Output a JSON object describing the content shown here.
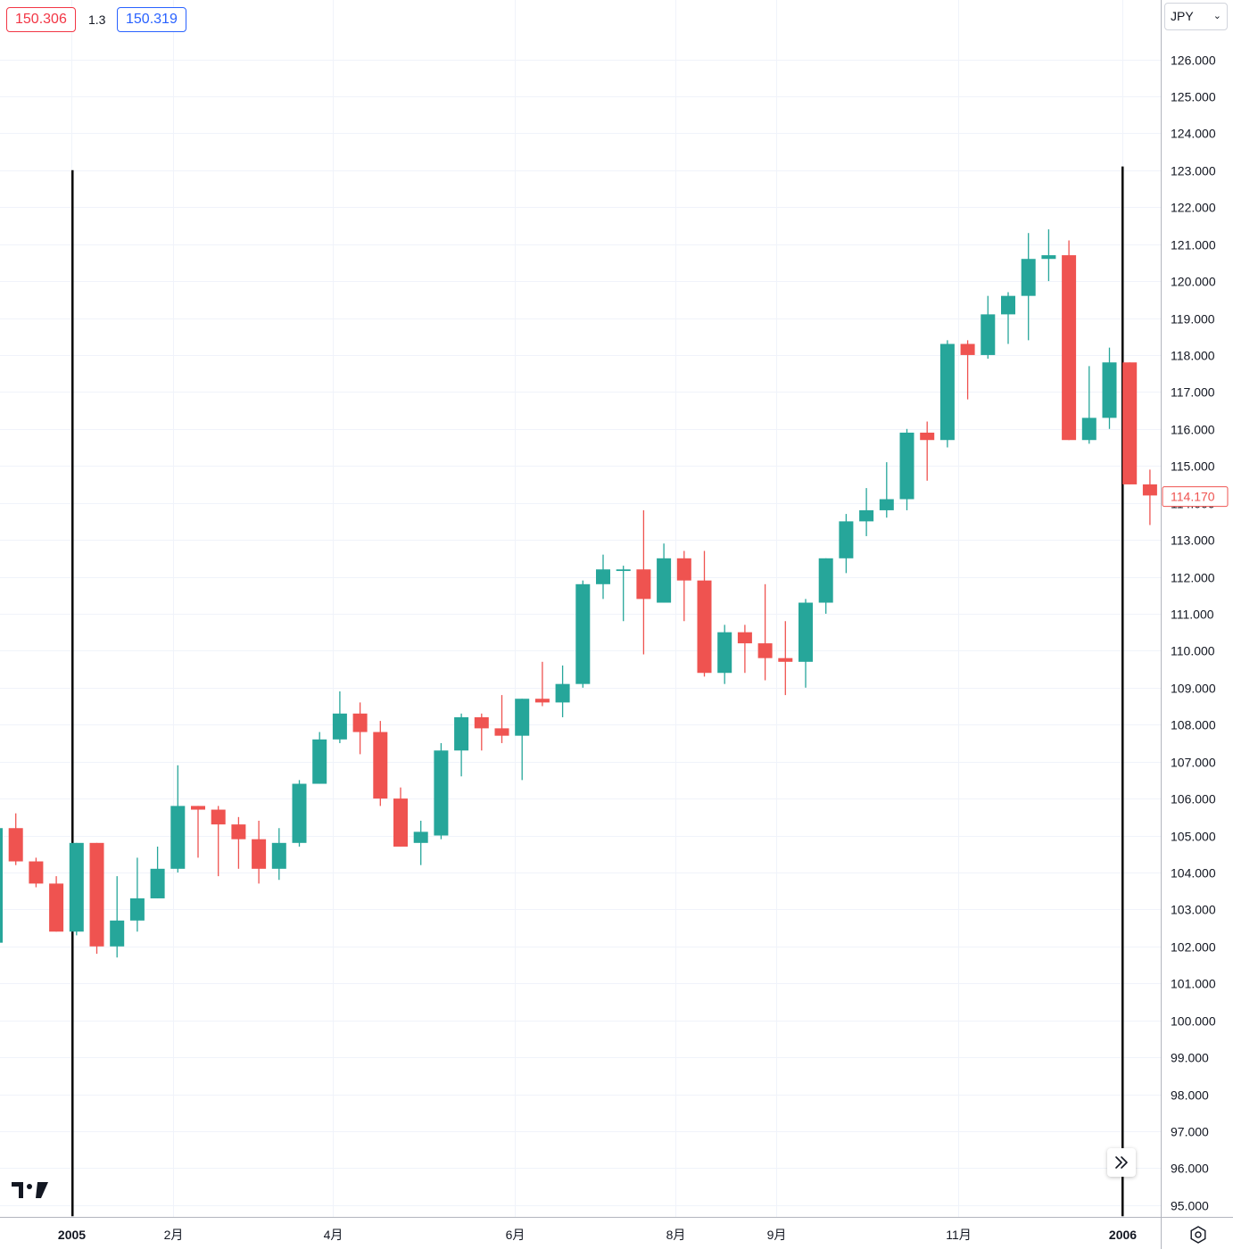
{
  "header": {
    "bid_price": "150.306",
    "spread": "1.3",
    "ask_price": "150.319",
    "currency": "JPY"
  },
  "colors": {
    "up": "#26a69a",
    "down": "#ef5350",
    "grid": "#f0f3fa",
    "axis_text": "#131722",
    "marker_line": "#000000",
    "last_price": "#ef5350"
  },
  "icons": {
    "scroll_right": "double-chevron-right-icon",
    "settings": "settings-icon",
    "logo": "tradingview-logo",
    "dropdown": "chevron-down-icon"
  },
  "chart_data": {
    "type": "candlestick",
    "interval": "weekly",
    "ylim": [
      94.7,
      127.4
    ],
    "y_ticks": [
      "95.000",
      "96.000",
      "97.000",
      "98.000",
      "99.000",
      "100.000",
      "101.000",
      "102.000",
      "103.000",
      "104.000",
      "105.000",
      "106.000",
      "107.000",
      "108.000",
      "109.000",
      "110.000",
      "111.000",
      "112.000",
      "113.000",
      "114.000",
      "115.000",
      "116.000",
      "117.000",
      "118.000",
      "119.000",
      "120.000",
      "121.000",
      "122.000",
      "123.000",
      "124.000",
      "125.000",
      "126.000"
    ],
    "x_labels": [
      {
        "label": "2005",
        "week": 3.75,
        "bold": true
      },
      {
        "label": "2月",
        "week": 8.75
      },
      {
        "label": "4月",
        "week": 16.65
      },
      {
        "label": "6月",
        "week": 25.65
      },
      {
        "label": "8月",
        "week": 33.55
      },
      {
        "label": "9月",
        "week": 38.55
      },
      {
        "label": "11月",
        "week": 47.55
      },
      {
        "label": "2006",
        "week": 55.65,
        "bold": true
      }
    ],
    "last_price": "114.170",
    "vertical_markers": [
      {
        "week": 3.8,
        "from": 123.0,
        "to": 94.7
      },
      {
        "week": 55.65,
        "from": 123.1,
        "to": 94.7
      }
    ],
    "ohlc": [
      {
        "o": 102.1,
        "h": 105.3,
        "l": 102.0,
        "c": 105.2
      },
      {
        "o": 105.2,
        "h": 105.6,
        "l": 104.2,
        "c": 104.3
      },
      {
        "o": 104.3,
        "h": 104.4,
        "l": 103.6,
        "c": 103.7
      },
      {
        "o": 103.7,
        "h": 103.9,
        "l": 102.4,
        "c": 102.4
      },
      {
        "o": 102.4,
        "h": 104.8,
        "l": 102.3,
        "c": 104.8
      },
      {
        "o": 104.8,
        "h": 104.8,
        "l": 101.8,
        "c": 102.0
      },
      {
        "o": 102.0,
        "h": 103.9,
        "l": 101.7,
        "c": 102.7
      },
      {
        "o": 102.7,
        "h": 104.4,
        "l": 102.4,
        "c": 103.3
      },
      {
        "o": 103.3,
        "h": 104.7,
        "l": 103.3,
        "c": 104.1
      },
      {
        "o": 104.1,
        "h": 106.9,
        "l": 104.0,
        "c": 105.8
      },
      {
        "o": 105.8,
        "h": 105.8,
        "l": 104.4,
        "c": 105.7
      },
      {
        "o": 105.7,
        "h": 105.8,
        "l": 103.9,
        "c": 105.3
      },
      {
        "o": 105.3,
        "h": 105.5,
        "l": 104.1,
        "c": 104.9
      },
      {
        "o": 104.9,
        "h": 105.4,
        "l": 103.7,
        "c": 104.1
      },
      {
        "o": 104.1,
        "h": 105.2,
        "l": 103.8,
        "c": 104.8
      },
      {
        "o": 104.8,
        "h": 106.5,
        "l": 104.7,
        "c": 106.4
      },
      {
        "o": 106.4,
        "h": 107.8,
        "l": 106.4,
        "c": 107.6
      },
      {
        "o": 107.6,
        "h": 108.9,
        "l": 107.5,
        "c": 108.3
      },
      {
        "o": 108.3,
        "h": 108.6,
        "l": 107.2,
        "c": 107.8
      },
      {
        "o": 107.8,
        "h": 108.1,
        "l": 105.8,
        "c": 106.0
      },
      {
        "o": 106.0,
        "h": 106.3,
        "l": 104.7,
        "c": 104.7
      },
      {
        "o": 104.8,
        "h": 105.4,
        "l": 104.2,
        "c": 105.1
      },
      {
        "o": 105.0,
        "h": 107.5,
        "l": 104.9,
        "c": 107.3
      },
      {
        "o": 107.3,
        "h": 108.3,
        "l": 106.6,
        "c": 108.2
      },
      {
        "o": 108.2,
        "h": 108.3,
        "l": 107.3,
        "c": 107.9
      },
      {
        "o": 107.9,
        "h": 108.8,
        "l": 107.5,
        "c": 107.7
      },
      {
        "o": 107.7,
        "h": 108.7,
        "l": 106.5,
        "c": 108.7
      },
      {
        "o": 108.7,
        "h": 109.7,
        "l": 108.5,
        "c": 108.6
      },
      {
        "o": 108.6,
        "h": 109.6,
        "l": 108.2,
        "c": 109.1
      },
      {
        "o": 109.1,
        "h": 111.9,
        "l": 109.0,
        "c": 111.8
      },
      {
        "o": 111.8,
        "h": 112.6,
        "l": 111.4,
        "c": 112.2
      },
      {
        "o": 112.2,
        "h": 112.3,
        "l": 110.8,
        "c": 112.2
      },
      {
        "o": 112.2,
        "h": 113.8,
        "l": 109.9,
        "c": 111.4
      },
      {
        "o": 111.3,
        "h": 112.9,
        "l": 111.3,
        "c": 112.5
      },
      {
        "o": 112.5,
        "h": 112.7,
        "l": 110.8,
        "c": 111.9
      },
      {
        "o": 111.9,
        "h": 112.7,
        "l": 109.3,
        "c": 109.4
      },
      {
        "o": 109.4,
        "h": 110.7,
        "l": 109.1,
        "c": 110.5
      },
      {
        "o": 110.5,
        "h": 110.7,
        "l": 109.4,
        "c": 110.2
      },
      {
        "o": 110.2,
        "h": 111.8,
        "l": 109.2,
        "c": 109.8
      },
      {
        "o": 109.8,
        "h": 110.8,
        "l": 108.8,
        "c": 109.7
      },
      {
        "o": 109.7,
        "h": 111.4,
        "l": 109.0,
        "c": 111.3
      },
      {
        "o": 111.3,
        "h": 112.5,
        "l": 111.0,
        "c": 112.5
      },
      {
        "o": 112.5,
        "h": 113.7,
        "l": 112.1,
        "c": 113.5
      },
      {
        "o": 113.5,
        "h": 114.4,
        "l": 113.1,
        "c": 113.8
      },
      {
        "o": 113.8,
        "h": 115.1,
        "l": 113.6,
        "c": 114.1
      },
      {
        "o": 114.1,
        "h": 116.0,
        "l": 113.8,
        "c": 115.9
      },
      {
        "o": 115.9,
        "h": 116.2,
        "l": 114.6,
        "c": 115.7
      },
      {
        "o": 115.7,
        "h": 118.4,
        "l": 115.5,
        "c": 118.3
      },
      {
        "o": 118.3,
        "h": 118.4,
        "l": 116.8,
        "c": 118.0
      },
      {
        "o": 118.0,
        "h": 119.6,
        "l": 117.9,
        "c": 119.1
      },
      {
        "o": 119.1,
        "h": 119.7,
        "l": 118.3,
        "c": 119.6
      },
      {
        "o": 119.6,
        "h": 121.3,
        "l": 118.4,
        "c": 120.6
      },
      {
        "o": 120.6,
        "h": 121.4,
        "l": 120.0,
        "c": 120.7
      },
      {
        "o": 120.7,
        "h": 121.1,
        "l": 115.7,
        "c": 115.7
      },
      {
        "o": 115.7,
        "h": 117.7,
        "l": 115.6,
        "c": 116.3
      },
      {
        "o": 116.3,
        "h": 118.2,
        "l": 116.0,
        "c": 117.8
      },
      {
        "o": 117.8,
        "h": 117.8,
        "l": 114.5,
        "c": 114.5
      },
      {
        "o": 114.5,
        "h": 114.9,
        "l": 113.4,
        "c": 114.2
      }
    ]
  }
}
